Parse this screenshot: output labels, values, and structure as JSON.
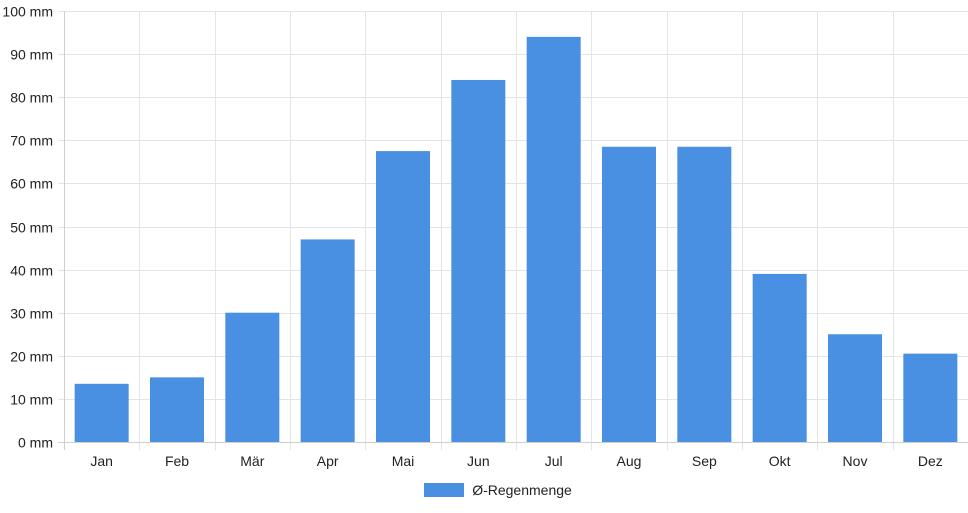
{
  "chart_data": {
    "type": "bar",
    "categories": [
      "Jan",
      "Feb",
      "Mär",
      "Apr",
      "Mai",
      "Jun",
      "Jul",
      "Aug",
      "Sep",
      "Okt",
      "Nov",
      "Dez"
    ],
    "series": [
      {
        "name": "Ø-Regenmenge",
        "values": [
          13.5,
          15,
          30,
          47,
          67.5,
          84,
          94,
          68.5,
          68.5,
          39,
          25,
          20.5
        ],
        "color": "#4a90e2"
      }
    ],
    "yunit": " mm",
    "ylim": [
      0,
      100
    ],
    "ystep": 10,
    "grid": true,
    "legend_position": "bottom"
  }
}
